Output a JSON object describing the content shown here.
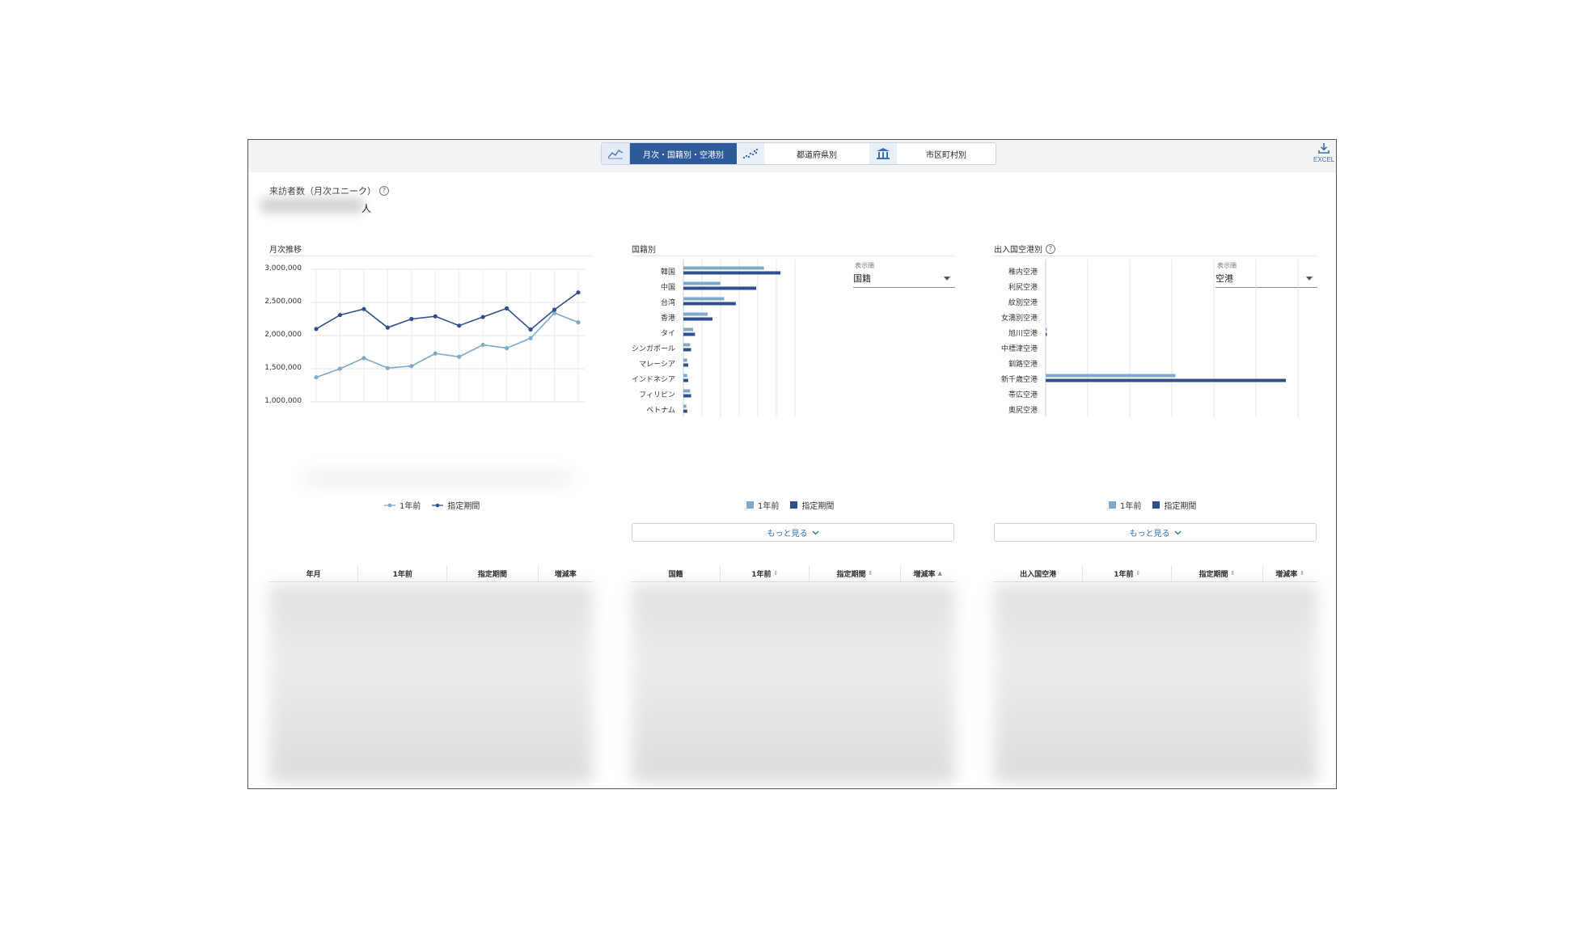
{
  "tabs": [
    {
      "icon": "line-chart-icon",
      "label": "月次・国籍別・空港別",
      "active": true
    },
    {
      "icon": "scatter-chart-icon",
      "label": "都道府県別",
      "active": false
    },
    {
      "icon": "building-icon",
      "label": "市区町村別",
      "active": false
    }
  ],
  "excel": {
    "label": "EXCEL",
    "icon": "download-icon"
  },
  "summary": {
    "title": "来訪者数（月次ユニーク）",
    "unit": "人"
  },
  "monthly": {
    "title": "月次推移",
    "legend": [
      "1年前",
      "指定期間"
    ]
  },
  "nationality": {
    "title": "国籍別",
    "select_label": "表示順",
    "select_value": "国籍",
    "legend": [
      "1年前",
      "指定期間"
    ],
    "more": "もっと見る"
  },
  "airport": {
    "title": "出入国空港別",
    "select_label": "表示順",
    "select_value": "空港",
    "legend": [
      "1年前",
      "指定期間"
    ],
    "more": "もっと見る"
  },
  "tables": {
    "monthly": [
      "年月",
      "1年前",
      "指定期間",
      "増減率"
    ],
    "nationality": [
      "国籍",
      "1年前",
      "指定期間",
      "増減率"
    ],
    "airport": [
      "出入国空港",
      "1年前",
      "指定期間",
      "増減率"
    ]
  },
  "colors": {
    "prev": "#7fa9c9",
    "current": "#2f4f8f",
    "accent": "#2f5a9a"
  },
  "chart_data": [
    {
      "type": "line",
      "title": "月次推移",
      "ylim": [
        1000000,
        3000000
      ],
      "yticks": [
        "3,000,000",
        "2,500,000",
        "2,000,000",
        "1,500,000",
        "1,000,000"
      ],
      "grid": true,
      "legend_position": "bottom",
      "series": [
        {
          "name": "1年前",
          "values": [
            1370000,
            1500000,
            1660000,
            1510000,
            1540000,
            1730000,
            1680000,
            1860000,
            1810000,
            1960000,
            2340000,
            2200000
          ]
        },
        {
          "name": "指定期間",
          "values": [
            2100000,
            2310000,
            2400000,
            2120000,
            2250000,
            2290000,
            2150000,
            2280000,
            2410000,
            2090000,
            2390000,
            2650000
          ]
        }
      ]
    },
    {
      "type": "bar",
      "title": "国籍別",
      "orientation": "horizontal",
      "categories": [
        "韓国",
        "中国",
        "台湾",
        "香港",
        "タイ",
        "シンガポール",
        "マレーシア",
        "インドネシア",
        "フィリピン",
        "ベトナム"
      ],
      "series": [
        {
          "name": "1年前",
          "values": [
            83,
            38,
            42,
            25,
            10,
            7,
            4,
            4,
            7,
            3
          ]
        },
        {
          "name": "指定期間",
          "values": [
            100,
            75,
            54,
            30,
            12,
            8,
            5,
            5,
            8,
            4
          ]
        }
      ],
      "xlim": [
        0,
        115
      ],
      "grid": true,
      "legend_position": "bottom"
    },
    {
      "type": "bar",
      "title": "出入国空港別",
      "orientation": "horizontal",
      "categories": [
        "稚内空港",
        "利尻空港",
        "紋別空港",
        "女満別空港",
        "旭川空港",
        "中標津空港",
        "釧路空港",
        "新千歳空港",
        "帯広空港",
        "奥尻空港"
      ],
      "series": [
        {
          "name": "1年前",
          "values": [
            0,
            0,
            0,
            0,
            0.5,
            0,
            0,
            54,
            0,
            0
          ]
        },
        {
          "name": "指定期間",
          "values": [
            0,
            0,
            0,
            0,
            0.5,
            0,
            0,
            100,
            0,
            0
          ]
        }
      ],
      "xlim": [
        0,
        105
      ],
      "grid": true,
      "legend_position": "bottom"
    }
  ]
}
